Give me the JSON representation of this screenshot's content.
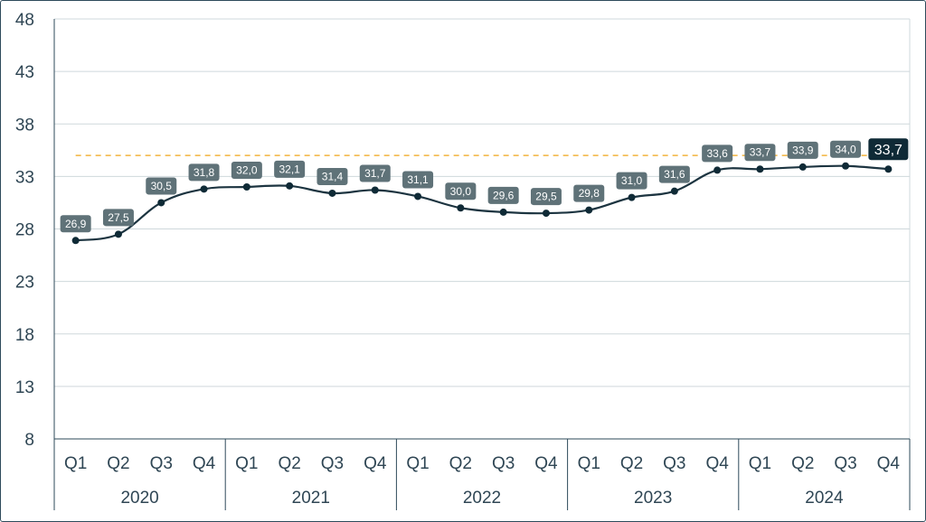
{
  "chart_data": {
    "type": "line",
    "categories": [
      "Q1",
      "Q2",
      "Q3",
      "Q4",
      "Q1",
      "Q2",
      "Q3",
      "Q4",
      "Q1",
      "Q2",
      "Q3",
      "Q4",
      "Q1",
      "Q2",
      "Q3",
      "Q4",
      "Q1",
      "Q2",
      "Q3",
      "Q4"
    ],
    "groups": [
      {
        "label": "2020",
        "count": 4
      },
      {
        "label": "2021",
        "count": 4
      },
      {
        "label": "2022",
        "count": 4
      },
      {
        "label": "2023",
        "count": 4
      },
      {
        "label": "2024",
        "count": 4
      }
    ],
    "series": [
      {
        "values": [
          26.9,
          27.5,
          30.5,
          31.8,
          32.0,
          32.1,
          31.4,
          31.7,
          31.1,
          30.0,
          29.6,
          29.5,
          29.8,
          31.0,
          31.6,
          33.6,
          33.7,
          33.9,
          34.0,
          33.7
        ],
        "data_labels": [
          "26,9",
          "27,5",
          "30,5",
          "31,8",
          "32,0",
          "32,1",
          "31,4",
          "31,7",
          "31,1",
          "30,0",
          "29,6",
          "29,5",
          "29,8",
          "31,0",
          "31,6",
          "33,6",
          "33,7",
          "33,9",
          "34,0",
          "33,7"
        ]
      }
    ],
    "reference_line": {
      "value": 35,
      "style": "dashed"
    },
    "ylim": [
      8,
      48
    ],
    "yticks": [
      8,
      13,
      18,
      23,
      28,
      33,
      38,
      43,
      48
    ],
    "ytick_labels": [
      "8",
      "13",
      "18",
      "23",
      "28",
      "33",
      "38",
      "43",
      "48"
    ],
    "grid": "horizontal",
    "colors": {
      "line": "#1c3440",
      "marker": "#0f2a36",
      "label_box": "#5f7278",
      "label_box_last": "#0f2a36",
      "reference_line": "#f2b33d",
      "grid": "#cfd8dc",
      "axis": "#2e4a5a",
      "text": "#2f4654"
    }
  }
}
